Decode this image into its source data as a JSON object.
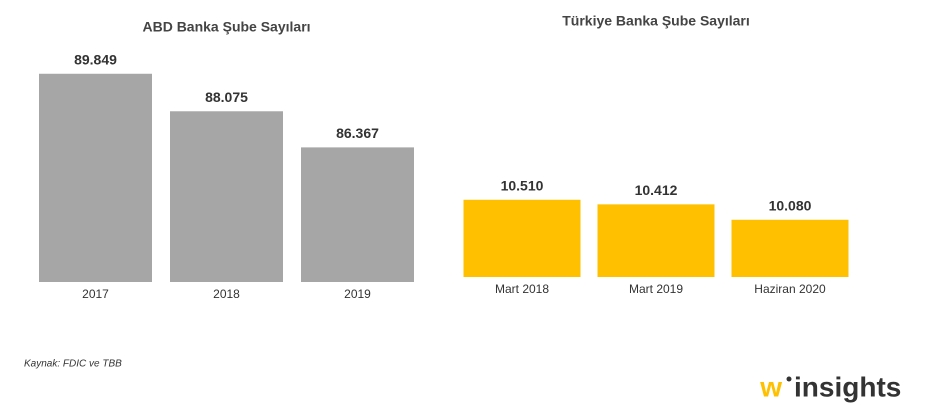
{
  "chart_data": [
    {
      "type": "bar",
      "title": "ABD Banka Şube Sayıları",
      "categories": [
        "2017",
        "2018",
        "2019"
      ],
      "values": [
        89849,
        88075,
        86367
      ],
      "value_labels": [
        "89.849",
        "88.075",
        "86.367"
      ],
      "color": "#a6a6a6",
      "ylim": [
        80000,
        90500
      ]
    },
    {
      "type": "bar",
      "title": "Türkiye Banka Şube Sayıları",
      "categories": [
        "Mart 2018",
        "Mart 2019",
        "Haziran 2020"
      ],
      "values": [
        10510,
        10412,
        10080
      ],
      "value_labels": [
        "10.510",
        "10.412",
        "10.080"
      ],
      "color": "#ffc000",
      "ylim": [
        8850,
        11000
      ]
    }
  ],
  "source": "Kaynak: FDIC ve TBB",
  "logo": {
    "mark": "w",
    "text": "insights"
  }
}
